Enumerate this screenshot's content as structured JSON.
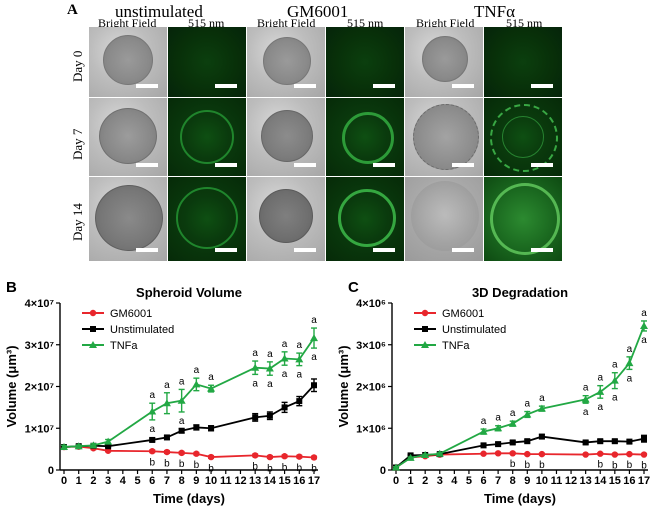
{
  "panel_a": {
    "letter": "A",
    "conditions": [
      "unstimulated",
      "GM6001",
      "TNFα"
    ],
    "subheaders": [
      "Bright Field",
      "515 nm"
    ],
    "days": [
      "Day 0",
      "Day 7",
      "Day 14"
    ]
  },
  "chart_data": [
    {
      "panel": "B",
      "type": "line",
      "title": "Spheroid Volume",
      "xlabel": "Time (days)",
      "ylabel": "Volume (μm³)",
      "xlim": [
        0,
        17
      ],
      "ylim": [
        0,
        40000000
      ],
      "x_ticks": [
        0,
        1,
        2,
        3,
        4,
        5,
        6,
        7,
        8,
        9,
        10,
        11,
        12,
        13,
        14,
        15,
        16,
        17
      ],
      "y_ticks": [
        0,
        10000000,
        20000000,
        30000000,
        40000000
      ],
      "y_tick_labels": [
        "0",
        "1×10⁷",
        "2×10⁷",
        "3×10⁷",
        "4×10⁷"
      ],
      "series": [
        {
          "name": "GM6001",
          "color": "#e8262c",
          "marker": "circle",
          "x": [
            0,
            1,
            2,
            3,
            6,
            7,
            8,
            9,
            10,
            13,
            14,
            15,
            16,
            17
          ],
          "y": [
            5500000,
            5600000,
            5200000,
            4600000,
            4500000,
            4300000,
            4100000,
            3900000,
            3100000,
            3500000,
            3100000,
            3300000,
            3200000,
            3000000
          ],
          "err": [
            300000,
            300000,
            300000,
            200000,
            300000,
            300000,
            300000,
            300000,
            300000,
            300000,
            300000,
            300000,
            300000,
            300000
          ],
          "annotations": {
            "pos": "below",
            "text": "b",
            "x": [
              6,
              7,
              8,
              9,
              10,
              13,
              14,
              15,
              16,
              17
            ]
          }
        },
        {
          "name": "Unstimulated",
          "color": "#000000",
          "marker": "square",
          "x": [
            0,
            1,
            2,
            3,
            6,
            7,
            8,
            9,
            10,
            13,
            14,
            15,
            16,
            17
          ],
          "y": [
            5500000,
            5700000,
            5800000,
            5700000,
            7200000,
            7800000,
            9400000,
            10200000,
            10000000,
            12600000,
            13000000,
            15000000,
            16500000,
            20300000
          ],
          "err": [
            300000,
            300000,
            300000,
            300000,
            400000,
            400000,
            500000,
            600000,
            600000,
            900000,
            900000,
            1200000,
            1100000,
            1500000
          ],
          "annotations": null
        },
        {
          "name": "TNFa",
          "color": "#22a844",
          "marker": "triangle",
          "x": [
            0,
            1,
            2,
            3,
            6,
            7,
            8,
            9,
            10,
            13,
            14,
            15,
            16,
            17
          ],
          "y": [
            5500000,
            5700000,
            5900000,
            6800000,
            14000000,
            16000000,
            16600000,
            20500000,
            19500000,
            24500000,
            24300000,
            26700000,
            26500000,
            31600000
          ],
          "err": [
            400000,
            300000,
            400000,
            500000,
            2000000,
            2500000,
            2700000,
            1500000,
            800000,
            1600000,
            1600000,
            1600000,
            1500000,
            2400000
          ],
          "annotations": {
            "pos": "above",
            "text": "a",
            "x": [
              6,
              7,
              8,
              9,
              10,
              13,
              14,
              15,
              16,
              17
            ],
            "x2": [
              6,
              8,
              13,
              14,
              15,
              16,
              17
            ],
            "text2": "a"
          }
        }
      ]
    },
    {
      "panel": "C",
      "type": "line",
      "title": "3D Degradation",
      "xlabel": "Time (days)",
      "ylabel": "Volume (μm³)",
      "xlim": [
        0,
        17
      ],
      "ylim": [
        0,
        4000000
      ],
      "x_ticks": [
        0,
        1,
        2,
        3,
        4,
        5,
        6,
        7,
        8,
        9,
        10,
        11,
        12,
        13,
        14,
        15,
        16,
        17
      ],
      "y_ticks": [
        0,
        1000000,
        2000000,
        3000000,
        4000000
      ],
      "y_tick_labels": [
        "0",
        "1×10⁶",
        "2×10⁶",
        "3×10⁶",
        "4×10⁶"
      ],
      "series": [
        {
          "name": "GM6001",
          "color": "#e8262c",
          "marker": "circle",
          "x": [
            0,
            1,
            2,
            3,
            6,
            7,
            8,
            9,
            10,
            13,
            14,
            15,
            16,
            17
          ],
          "y": [
            60000,
            300000,
            330000,
            370000,
            390000,
            400000,
            400000,
            380000,
            380000,
            370000,
            390000,
            370000,
            380000,
            370000
          ],
          "err": [
            20000,
            20000,
            20000,
            20000,
            20000,
            20000,
            20000,
            20000,
            20000,
            20000,
            20000,
            20000,
            20000,
            20000
          ],
          "annotations": {
            "pos": "below",
            "text": "b",
            "x": [
              8,
              9,
              10,
              14,
              15,
              16,
              17
            ]
          }
        },
        {
          "name": "Unstimulated",
          "color": "#000000",
          "marker": "square",
          "x": [
            0,
            1,
            2,
            3,
            6,
            7,
            8,
            9,
            10,
            13,
            14,
            15,
            16,
            17
          ],
          "y": [
            60000,
            350000,
            360000,
            380000,
            590000,
            620000,
            660000,
            690000,
            800000,
            660000,
            690000,
            690000,
            680000,
            750000
          ],
          "err": [
            20000,
            20000,
            20000,
            20000,
            40000,
            40000,
            40000,
            40000,
            50000,
            40000,
            40000,
            40000,
            40000,
            80000
          ],
          "annotations": null
        },
        {
          "name": "TNFa",
          "color": "#22a844",
          "marker": "triangle",
          "x": [
            0,
            1,
            2,
            3,
            6,
            7,
            8,
            9,
            10,
            13,
            14,
            15,
            16,
            17
          ],
          "y": [
            60000,
            290000,
            360000,
            390000,
            920000,
            1000000,
            1110000,
            1330000,
            1470000,
            1690000,
            1870000,
            2140000,
            2560000,
            3450000
          ],
          "err": [
            20000,
            20000,
            20000,
            20000,
            60000,
            60000,
            60000,
            70000,
            60000,
            90000,
            150000,
            190000,
            150000,
            120000
          ],
          "annotations": {
            "pos": "above",
            "text": "a",
            "x": [
              6,
              7,
              8,
              9,
              10,
              13,
              14,
              15,
              16,
              17
            ],
            "x2": [
              13,
              14,
              15,
              16,
              17
            ],
            "text2": "a"
          }
        }
      ]
    }
  ]
}
